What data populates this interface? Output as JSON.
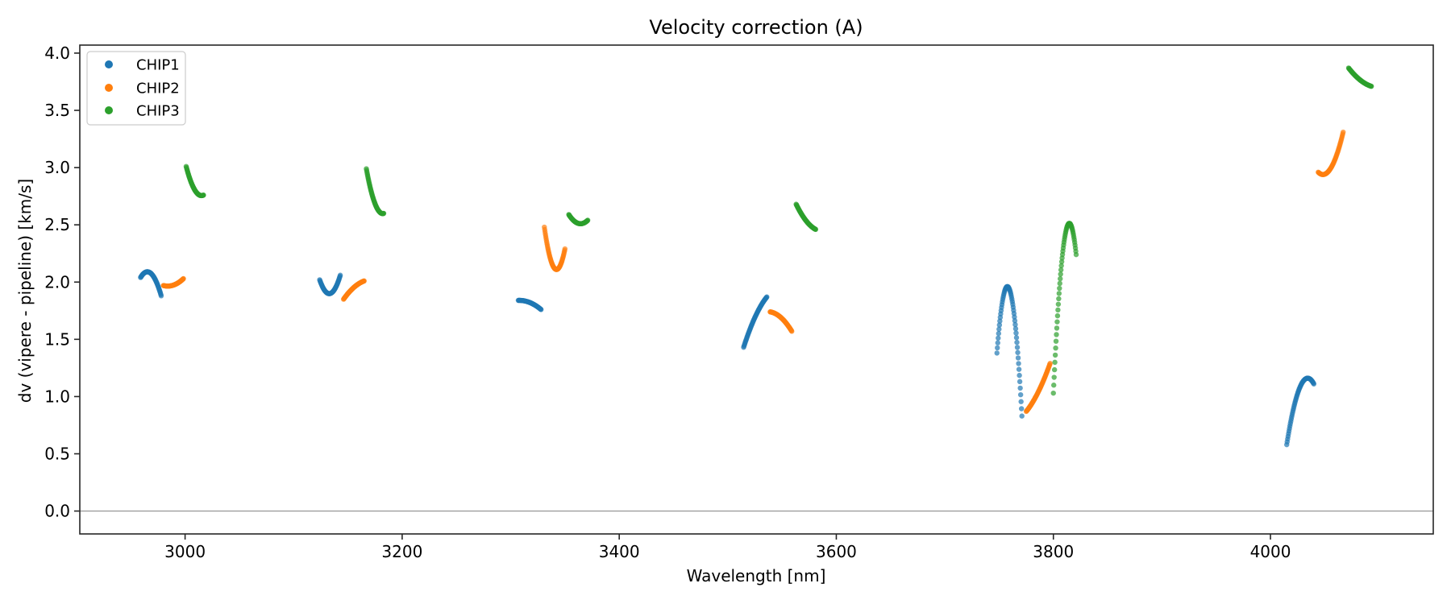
{
  "chart_data": {
    "type": "scatter",
    "title": "Velocity correction (A)",
    "xlabel": "Wavelength [nm]",
    "ylabel": "dv (vipere - pipeline) [km/s]",
    "xlim": [
      2903,
      4150
    ],
    "ylim": [
      -0.2,
      4.07
    ],
    "xticks": [
      3000,
      3200,
      3400,
      3600,
      3800,
      4000
    ],
    "xtick_labels": [
      "3000",
      "3200",
      "3400",
      "3600",
      "3800",
      "4000"
    ],
    "yticks": [
      0.0,
      0.5,
      1.0,
      1.5,
      2.0,
      2.5,
      3.0,
      3.5,
      4.0
    ],
    "ytick_labels": [
      "0.0",
      "0.5",
      "1.0",
      "1.5",
      "2.0",
      "2.5",
      "3.0",
      "3.5",
      "4.0"
    ],
    "grid": false,
    "reference_line": {
      "y": 0.0,
      "color": "#808080"
    },
    "legend": {
      "placement": "top-left",
      "entries": [
        "CHIP1",
        "CHIP2",
        "CHIP3"
      ]
    },
    "series": [
      {
        "name": "CHIP1",
        "color": "#1f77b4",
        "segments": [
          {
            "x": [
              2959,
              2965,
              2978
            ],
            "y": [
              2.04,
              2.09,
              1.88
            ]
          },
          {
            "x": [
              3124,
              3132,
              3143
            ],
            "y": [
              2.02,
              1.9,
              2.06
            ]
          },
          {
            "x": [
              3307,
              3318,
              3328
            ],
            "y": [
              1.84,
              1.82,
              1.76
            ]
          },
          {
            "x": [
              3514.6,
              3524,
              3536
            ],
            "y": [
              1.43,
              1.67,
              1.87
            ]
          },
          {
            "x": [
              3748,
              3758,
              3771
            ],
            "y": [
              1.38,
              1.96,
              0.83
            ]
          },
          {
            "x": [
              4015,
              4035,
              4040
            ],
            "y": [
              0.58,
              1.16,
              1.11
            ]
          }
        ]
      },
      {
        "name": "CHIP2",
        "color": "#ff7f0e",
        "segments": [
          {
            "x": [
              2980,
              2988,
              2998.5
            ],
            "y": [
              1.97,
              1.97,
              2.03
            ]
          },
          {
            "x": [
              3146,
              3154,
              3165
            ],
            "y": [
              1.85,
              1.94,
              2.01
            ]
          },
          {
            "x": [
              3331,
              3342,
              3350
            ],
            "y": [
              2.48,
              2.11,
              2.29
            ]
          },
          {
            "x": [
              3539,
              3549,
              3559
            ],
            "y": [
              1.74,
              1.69,
              1.57
            ]
          },
          {
            "x": [
              3775,
              3785,
              3797
            ],
            "y": [
              0.87,
              1.02,
              1.29
            ]
          },
          {
            "x": [
              4044,
              4049,
              4067
            ],
            "y": [
              2.96,
              2.94,
              3.31
            ]
          }
        ]
      },
      {
        "name": "CHIP3",
        "color": "#2ca02c",
        "segments": [
          {
            "x": [
              3001,
              3008,
              3017
            ],
            "y": [
              3.01,
              2.82,
              2.76
            ]
          },
          {
            "x": [
              3167,
              3173,
              3183
            ],
            "y": [
              2.99,
              2.74,
              2.6
            ]
          },
          {
            "x": [
              3353.5,
              3364,
              3371
            ],
            "y": [
              2.59,
              2.51,
              2.54
            ]
          },
          {
            "x": [
              3563,
              3571,
              3581
            ],
            "y": [
              2.68,
              2.55,
              2.46
            ]
          },
          {
            "x": [
              3800,
              3814,
              3821
            ],
            "y": [
              1.03,
              2.51,
              2.24
            ]
          },
          {
            "x": [
              4072,
              4082,
              4093
            ],
            "y": [
              3.87,
              3.77,
              3.71
            ]
          }
        ]
      }
    ]
  }
}
